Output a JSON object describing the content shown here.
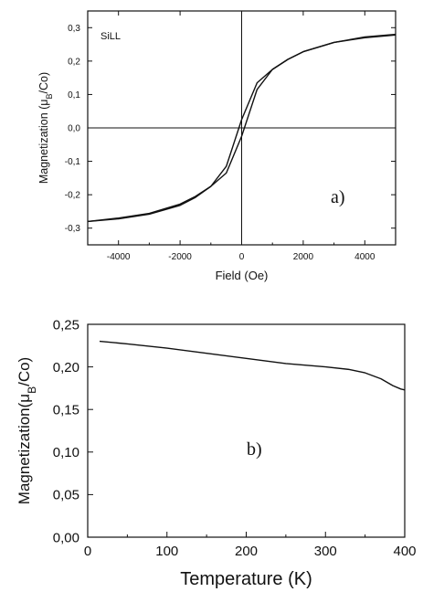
{
  "chart_data": [
    {
      "type": "line",
      "panel_label": "a)",
      "annotation": "SiLL",
      "xlabel": "Field (Oe)",
      "ylabel": "Magnetization (μB/Co)",
      "ylabel_parts": {
        "pre": "Magnetization (",
        "mu": "μ",
        "sub": "B",
        "post": "/Co)"
      },
      "xlim": [
        -5000,
        5000
      ],
      "ylim": [
        -0.35,
        0.35
      ],
      "xticks": [
        -4000,
        -2000,
        0,
        2000,
        4000
      ],
      "xtick_labels": [
        "-4000",
        "-2000",
        "0",
        "2000",
        "4000"
      ],
      "yticks": [
        0.3,
        0.2,
        0.1,
        0.0,
        -0.1,
        -0.2,
        -0.3
      ],
      "ytick_labels": [
        "0,3",
        "0,2",
        "0,1",
        "0,0",
        "-0,1",
        "-0,2",
        "-0,3"
      ],
      "zero_lines": true,
      "grid": false,
      "series": [
        {
          "x": [
            -5000,
            -4000,
            -3000,
            -2000,
            -1500,
            -1000,
            -500,
            0,
            500,
            1000,
            1500,
            2000,
            3000,
            4000,
            5000
          ],
          "y": [
            -0.28,
            -0.272,
            -0.258,
            -0.232,
            -0.208,
            -0.175,
            -0.115,
            0.025,
            0.135,
            0.175,
            0.205,
            0.228,
            0.256,
            0.27,
            0.278
          ]
        },
        {
          "x": [
            -5000,
            -4000,
            -3000,
            -2000,
            -1500,
            -1000,
            -500,
            0,
            500,
            1000,
            1500,
            2000,
            3000,
            4000,
            5000
          ],
          "y": [
            -0.28,
            -0.27,
            -0.256,
            -0.228,
            -0.205,
            -0.175,
            -0.135,
            -0.025,
            0.115,
            0.175,
            0.205,
            0.228,
            0.256,
            0.272,
            0.28
          ]
        }
      ]
    },
    {
      "type": "line",
      "panel_label": "b)",
      "xlabel": "Temperature (K)",
      "ylabel": "Magnetization(μB/Co)",
      "ylabel_parts": {
        "pre": "Magnetization(",
        "mu": "μ",
        "sub": "B",
        "post": "/Co)"
      },
      "xlim": [
        0,
        400
      ],
      "ylim": [
        0.0,
        0.25
      ],
      "xticks": [
        0,
        100,
        200,
        300,
        400
      ],
      "xtick_labels": [
        "0",
        "100",
        "200",
        "300",
        "400"
      ],
      "yticks": [
        0.0,
        0.05,
        0.1,
        0.15,
        0.2,
        0.25
      ],
      "ytick_labels": [
        "0,00",
        "0,05",
        "0,10",
        "0,15",
        "0,20",
        "0,25"
      ],
      "grid": false,
      "series": [
        {
          "x": [
            15,
            50,
            100,
            150,
            200,
            250,
            300,
            330,
            350,
            370,
            385,
            395,
            400
          ],
          "y": [
            0.23,
            0.227,
            0.222,
            0.216,
            0.21,
            0.204,
            0.2,
            0.197,
            0.193,
            0.186,
            0.178,
            0.174,
            0.173
          ]
        }
      ]
    }
  ]
}
